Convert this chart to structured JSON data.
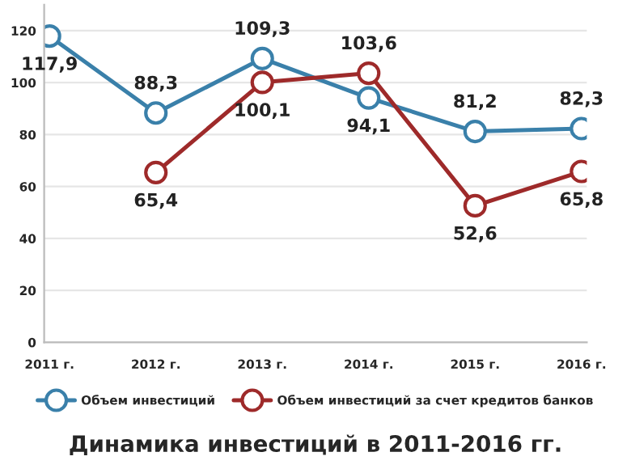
{
  "chart_data": {
    "type": "line",
    "title": "Динамика инвестиций в 2011-2016 гг.",
    "categories": [
      "2011 г.",
      "2012 г.",
      "2013 г.",
      "2014 г.",
      "2015 г.",
      "2016 г."
    ],
    "series": [
      {
        "name": "Объем инвестиций",
        "color": "#3a80aa",
        "values": [
          117.9,
          88.3,
          109.3,
          94.1,
          81.2,
          82.3
        ],
        "value_labels": [
          "117,9",
          "88,3",
          "109,3",
          "94,1",
          "81,2",
          "82,3"
        ]
      },
      {
        "name": "Объем инвестиций за счет кредитов банков",
        "color": "#9e2a2a",
        "values": [
          null,
          65.4,
          100.1,
          103.6,
          52.6,
          65.8
        ],
        "value_labels": [
          null,
          "65,4",
          "100,1",
          "103,6",
          "52,6",
          "65,8"
        ]
      }
    ],
    "ylim": [
      0,
      130
    ],
    "yticks": [
      0,
      20,
      40,
      60,
      80,
      100,
      120
    ],
    "grid": "y",
    "legend": "bottom",
    "marker": "circle",
    "line_style": "solid"
  }
}
